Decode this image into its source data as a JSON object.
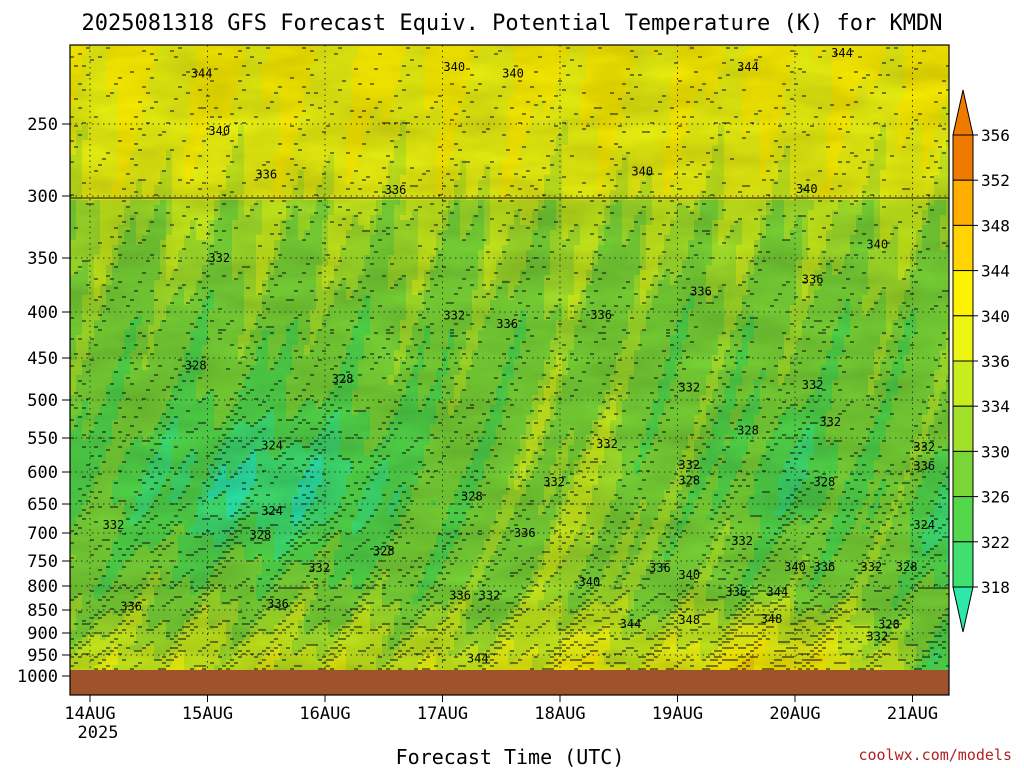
{
  "chart_data": {
    "type": "heatmap",
    "title": "2025081318 GFS Forecast Equiv. Potential Temperature (K) for KMDN",
    "xlabel": "Forecast Time (UTC)",
    "ylabel": "",
    "x_ticks": [
      "14AUG",
      "15AUG",
      "16AUG",
      "17AUG",
      "18AUG",
      "19AUG",
      "20AUG",
      "21AUG"
    ],
    "x_year": "2025",
    "y_ticks": [
      250,
      300,
      350,
      400,
      450,
      500,
      550,
      600,
      650,
      700,
      750,
      800,
      850,
      900,
      950,
      1000
    ],
    "y_range": [
      200,
      1000
    ],
    "grid": true,
    "colorbar": {
      "levels": [
        318,
        322,
        326,
        330,
        334,
        336,
        340,
        344,
        348,
        352,
        356
      ],
      "colors": [
        "#2de8a8",
        "#3fe070",
        "#52d84a",
        "#7ad636",
        "#a2e02a",
        "#c8ec1c",
        "#eef510",
        "#fff200",
        "#ffd400",
        "#ffae00",
        "#f07a00"
      ]
    },
    "contour_labels": [
      {
        "value": 344,
        "day": 0.95,
        "p": 218
      },
      {
        "value": 340,
        "day": 3.1,
        "p": 214
      },
      {
        "value": 340,
        "day": 3.6,
        "p": 218
      },
      {
        "value": 344,
        "day": 5.6,
        "p": 214
      },
      {
        "value": 344,
        "day": 6.4,
        "p": 205
      },
      {
        "value": 340,
        "day": 1.1,
        "p": 255
      },
      {
        "value": 336,
        "day": 1.5,
        "p": 285
      },
      {
        "value": 336,
        "day": 2.6,
        "p": 296
      },
      {
        "value": 340,
        "day": 4.7,
        "p": 283
      },
      {
        "value": 340,
        "day": 6.1,
        "p": 295
      },
      {
        "value": 340,
        "day": 6.7,
        "p": 339
      },
      {
        "value": 332,
        "day": 1.1,
        "p": 350
      },
      {
        "value": 336,
        "day": 5.2,
        "p": 381
      },
      {
        "value": 336,
        "day": 6.15,
        "p": 370
      },
      {
        "value": 332,
        "day": 3.1,
        "p": 404
      },
      {
        "value": 336,
        "day": 3.55,
        "p": 413
      },
      {
        "value": 336,
        "day": 4.35,
        "p": 403
      },
      {
        "value": 328,
        "day": 0.9,
        "p": 459
      },
      {
        "value": 328,
        "day": 2.15,
        "p": 475
      },
      {
        "value": 332,
        "day": 5.1,
        "p": 485
      },
      {
        "value": 332,
        "day": 6.15,
        "p": 482
      },
      {
        "value": 324,
        "day": 1.55,
        "p": 561
      },
      {
        "value": 332,
        "day": 4.4,
        "p": 559
      },
      {
        "value": 328,
        "day": 5.6,
        "p": 540
      },
      {
        "value": 332,
        "day": 6.3,
        "p": 529
      },
      {
        "value": 332,
        "day": 7.1,
        "p": 563
      },
      {
        "value": 332,
        "day": 5.1,
        "p": 590
      },
      {
        "value": 336,
        "day": 7.1,
        "p": 591
      },
      {
        "value": 328,
        "day": 5.1,
        "p": 613
      },
      {
        "value": 332,
        "day": 3.95,
        "p": 616
      },
      {
        "value": 328,
        "day": 6.25,
        "p": 616
      },
      {
        "value": 328,
        "day": 3.25,
        "p": 638
      },
      {
        "value": 324,
        "day": 1.55,
        "p": 662
      },
      {
        "value": 332,
        "day": 0.2,
        "p": 686
      },
      {
        "value": 328,
        "day": 1.45,
        "p": 704
      },
      {
        "value": 336,
        "day": 3.7,
        "p": 700
      },
      {
        "value": 324,
        "day": 7.1,
        "p": 686
      },
      {
        "value": 332,
        "day": 5.55,
        "p": 714
      },
      {
        "value": 328,
        "day": 2.5,
        "p": 732
      },
      {
        "value": 332,
        "day": 1.95,
        "p": 764
      },
      {
        "value": 336,
        "day": 4.85,
        "p": 764
      },
      {
        "value": 340,
        "day": 5.1,
        "p": 778
      },
      {
        "value": 340,
        "day": 6.0,
        "p": 762
      },
      {
        "value": 336,
        "day": 6.25,
        "p": 762
      },
      {
        "value": 332,
        "day": 6.65,
        "p": 762
      },
      {
        "value": 328,
        "day": 6.95,
        "p": 762
      },
      {
        "value": 340,
        "day": 4.25,
        "p": 792
      },
      {
        "value": 336,
        "day": 5.5,
        "p": 812
      },
      {
        "value": 344,
        "day": 5.85,
        "p": 812
      },
      {
        "value": 336,
        "day": 3.15,
        "p": 820
      },
      {
        "value": 332,
        "day": 3.4,
        "p": 820
      },
      {
        "value": 336,
        "day": 0.35,
        "p": 843
      },
      {
        "value": 336,
        "day": 1.6,
        "p": 838
      },
      {
        "value": 348,
        "day": 5.1,
        "p": 872
      },
      {
        "value": 348,
        "day": 5.8,
        "p": 870
      },
      {
        "value": 344,
        "day": 4.6,
        "p": 880
      },
      {
        "value": 328,
        "day": 6.8,
        "p": 882
      },
      {
        "value": 332,
        "day": 6.7,
        "p": 908
      },
      {
        "value": 344,
        "day": 3.3,
        "p": 958
      }
    ]
  }
}
